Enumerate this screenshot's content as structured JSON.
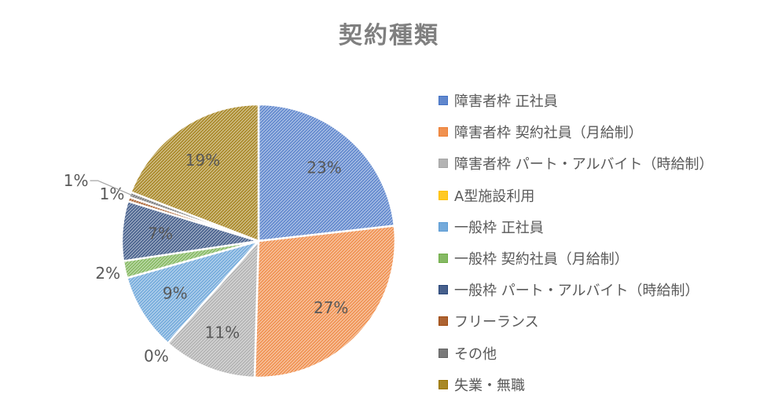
{
  "chart_data": {
    "type": "pie",
    "title": "契約種類",
    "legend_position": "right",
    "slices": [
      {
        "name": "障害者枠 正社員",
        "value": 23,
        "label": "23%",
        "color": "#4472c4",
        "label_pos": "inside"
      },
      {
        "name": "障害者枠 契約社員（月給制）",
        "value": 27,
        "label": "27%",
        "color": "#ed7d31",
        "label_pos": "inside"
      },
      {
        "name": "障害者枠 パート・アルバイト（時給制）",
        "value": 11,
        "label": "11%",
        "color": "#a5a5a5",
        "label_pos": "inside"
      },
      {
        "name": "A型施設利用",
        "value": 0,
        "label": "0%",
        "color": "#ffc000",
        "label_pos": "outside"
      },
      {
        "name": "一般枠 正社員",
        "value": 9,
        "label": "9%",
        "color": "#5b9bd5",
        "label_pos": "inside"
      },
      {
        "name": "一般枠 契約社員（月給制）",
        "value": 2,
        "label": "2%",
        "color": "#70ad47",
        "label_pos": "outside"
      },
      {
        "name": "一般枠 パート・アルバイト（時給制）",
        "value": 7,
        "label": "7%",
        "color": "#264478",
        "label_pos": "inside"
      },
      {
        "name": "フリーランス",
        "value": 0.5,
        "label": "1%",
        "color": "#9e480e",
        "label_pos": "outside"
      },
      {
        "name": "その他",
        "value": 0.6,
        "label": "1%",
        "color": "#636363",
        "label_pos": "leader"
      },
      {
        "name": "失業・無職",
        "value": 19,
        "label": "19%",
        "color": "#997300",
        "label_pos": "inside"
      }
    ],
    "legend_labels": [
      "障害者枠 正社員",
      "障害者枠 契約社員（月給制）",
      "障害者枠 パート・アルバイト（時給制）",
      "A型施設利用",
      "一般枠 正社員",
      "一般枠 契約社員（月給制）",
      "一般枠 パート・アルバイト（時給制）",
      "フリーランス",
      "その他",
      "失業・無職"
    ]
  }
}
